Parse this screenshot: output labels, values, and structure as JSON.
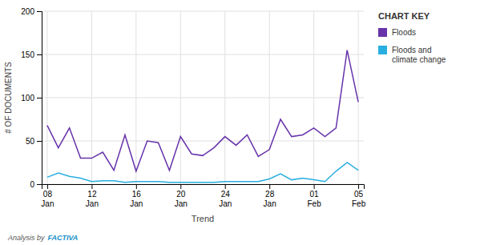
{
  "chart_data": {
    "type": "line",
    "x_label": "Trend",
    "y_label": "# OF DOCUMENTS",
    "categories": [
      "08\nJan",
      null,
      null,
      null,
      "12\nJan",
      null,
      null,
      null,
      "16\nJan",
      null,
      null,
      null,
      "20\nJan",
      null,
      null,
      null,
      "24\nJan",
      null,
      null,
      null,
      "28\nJan",
      null,
      null,
      null,
      "01\nFeb",
      null,
      null,
      null,
      "05\nFeb"
    ],
    "series": [
      {
        "name": "Floods",
        "color": "#6633aa",
        "values": [
          68,
          42,
          65,
          30,
          30,
          37,
          16,
          57,
          15,
          50,
          48,
          16,
          55,
          35,
          33,
          42,
          55,
          45,
          57,
          32,
          40,
          75,
          55,
          57,
          65,
          55,
          65,
          155,
          95
        ]
      },
      {
        "name": "Floods and\nclimate change",
        "color": "#29aee0",
        "values": [
          8,
          13,
          9,
          7,
          3,
          4,
          4,
          2,
          3,
          3,
          3,
          2,
          2,
          2,
          2,
          2,
          3,
          3,
          3,
          3,
          6,
          12,
          5,
          7,
          5,
          3,
          15,
          25,
          16
        ]
      }
    ],
    "ylim": [
      0,
      200
    ],
    "yticks": [
      0,
      50,
      100,
      150,
      200
    ],
    "grid": true,
    "legend": "right",
    "annotations": [
      {
        "text": "CHART KEY"
      },
      {
        "text": "Analysis by"
      },
      {
        "text": "FACTIVA",
        "color": "#1a90c8"
      }
    ]
  }
}
